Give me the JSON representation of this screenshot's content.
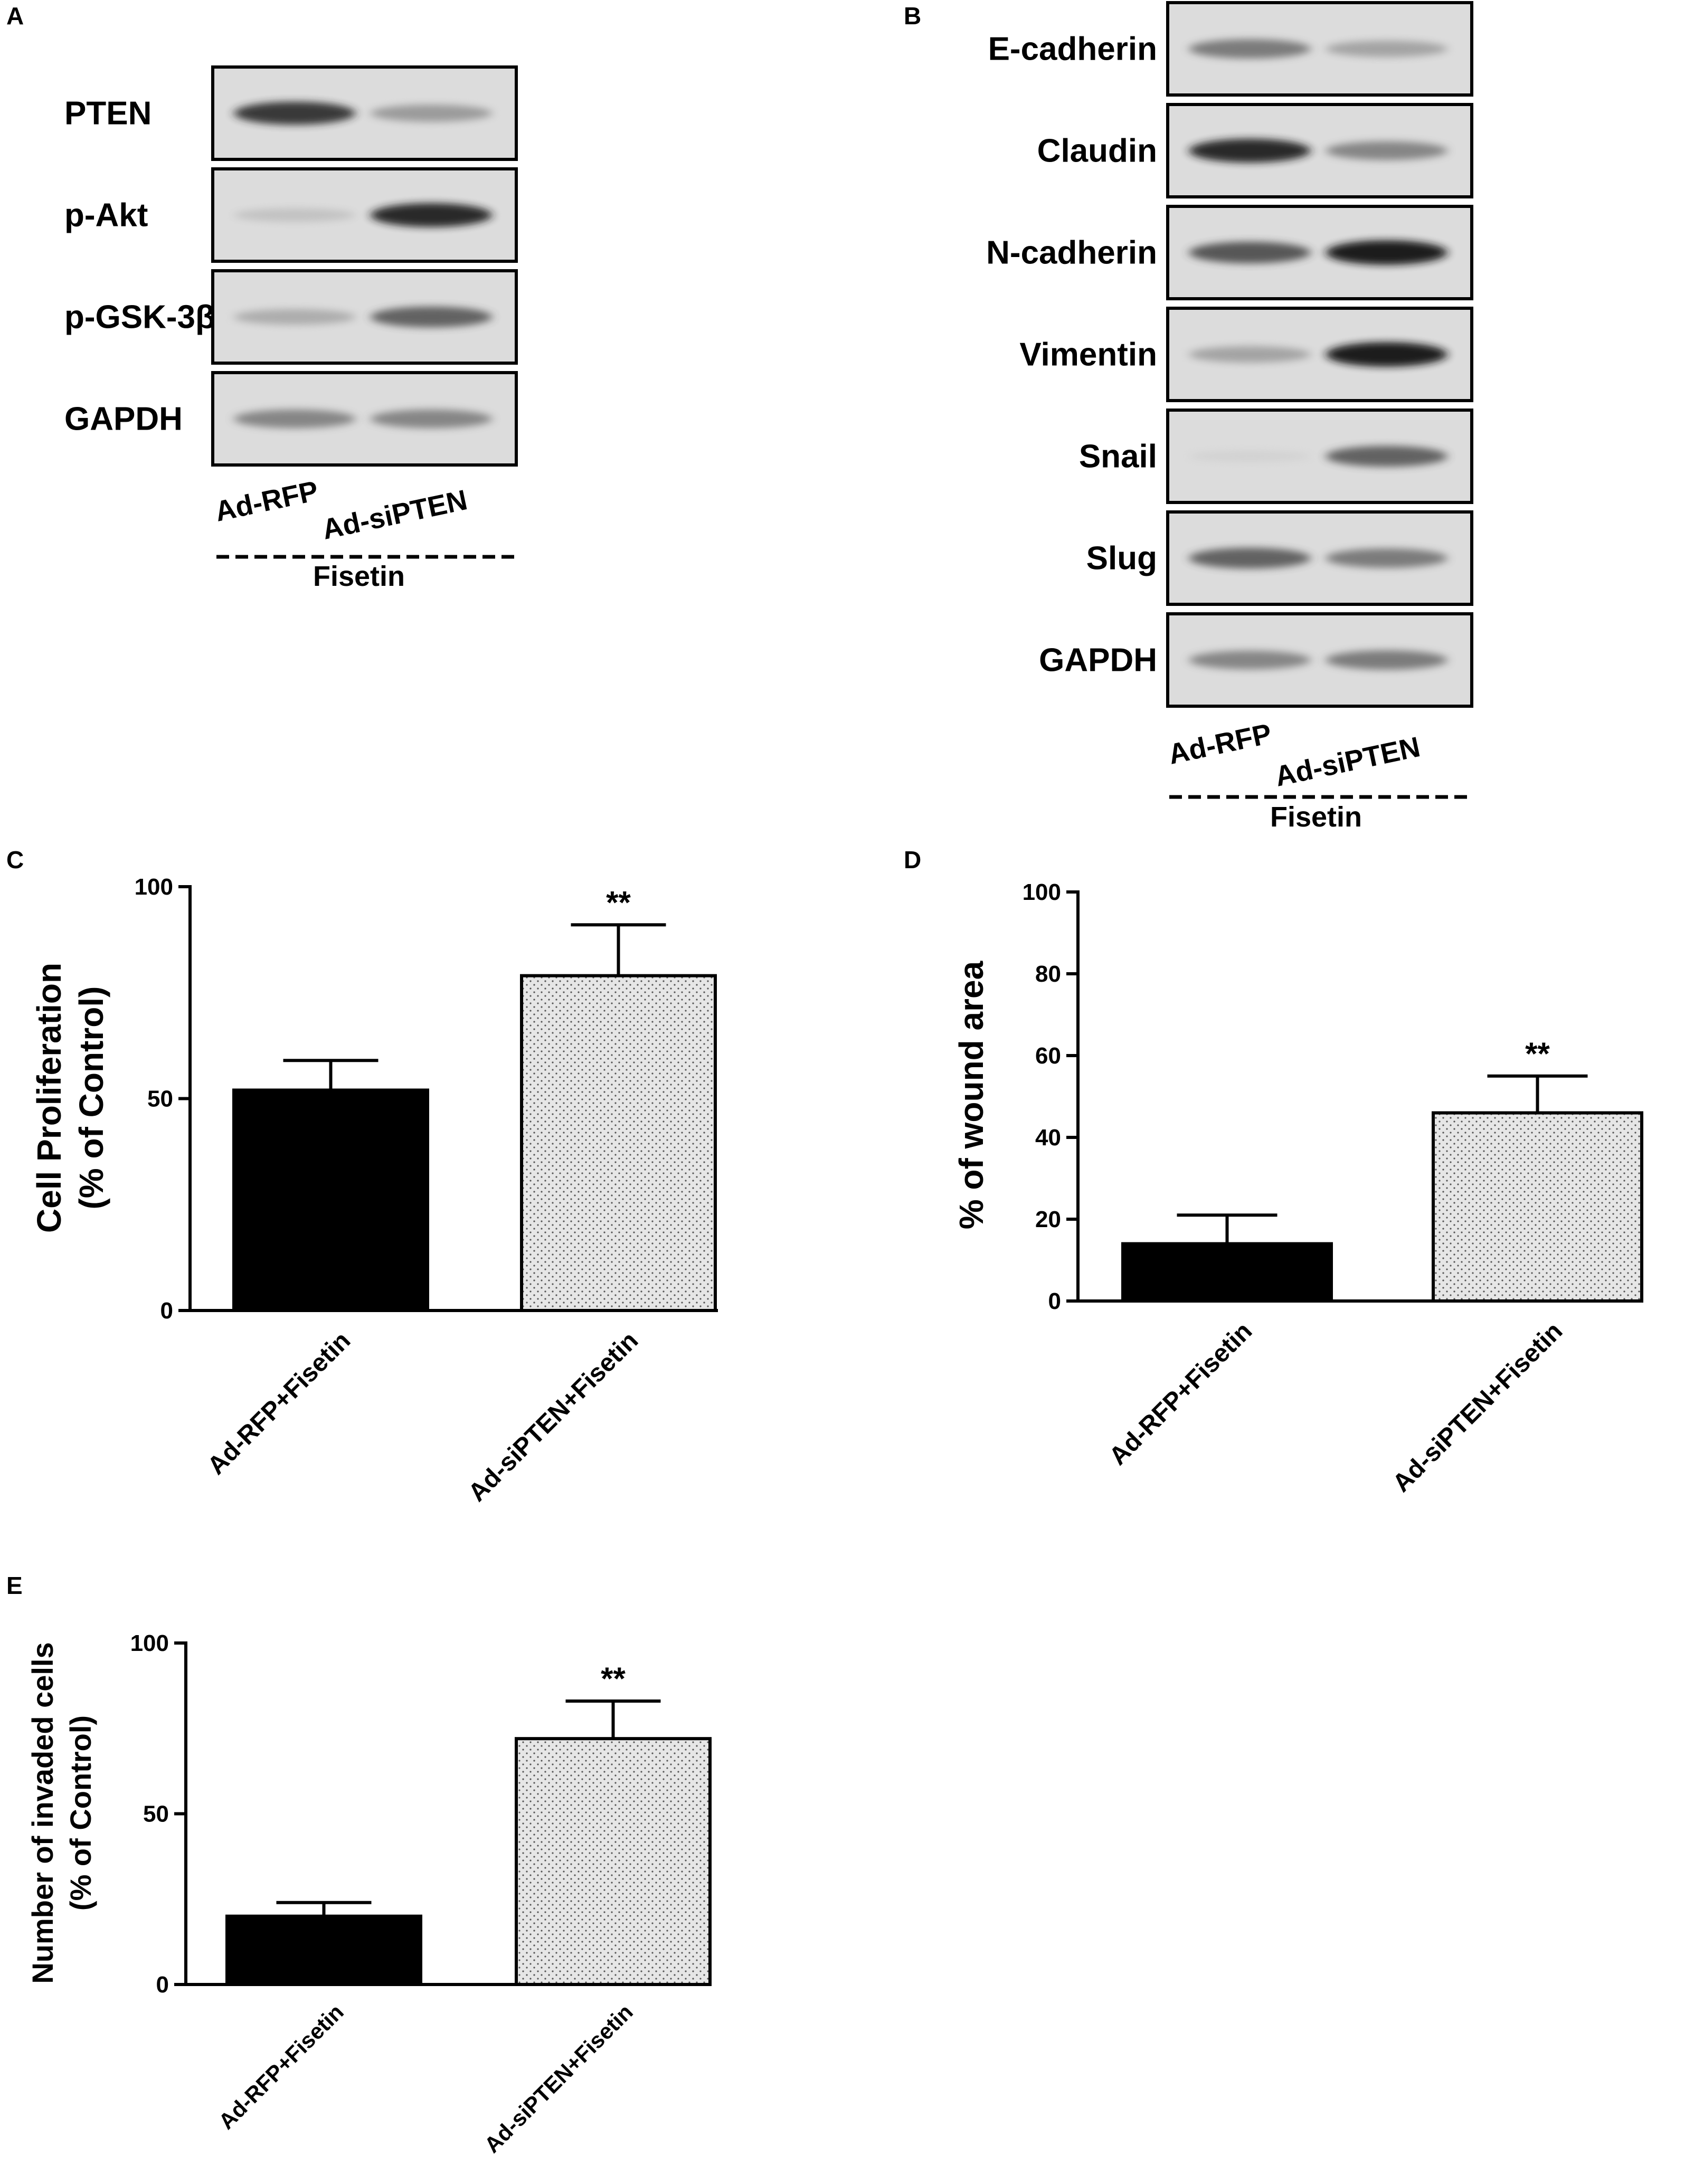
{
  "panel_A": {
    "letter": "A",
    "blots": [
      "PTEN",
      "p-Akt",
      "p-GSK-3β",
      "GAPDH"
    ],
    "lanes": [
      "Ad-RFP",
      "Ad-siPTEN"
    ],
    "treatment": "Fisetin",
    "band_intensity": [
      [
        0.85,
        0.45
      ],
      [
        0.2,
        0.9
      ],
      [
        0.35,
        0.7
      ],
      [
        0.55,
        0.55
      ]
    ]
  },
  "panel_B": {
    "letter": "B",
    "blots": [
      "E-cadherin",
      "Claudin",
      "N-cadherin",
      "Vimentin",
      "Snail",
      "Slug",
      "GAPDH"
    ],
    "lanes": [
      "Ad-RFP",
      "Ad-siPTEN"
    ],
    "treatment": "Fisetin",
    "band_intensity": [
      [
        0.6,
        0.4
      ],
      [
        0.9,
        0.55
      ],
      [
        0.75,
        0.95
      ],
      [
        0.4,
        0.95
      ],
      [
        0.05,
        0.7
      ],
      [
        0.7,
        0.6
      ],
      [
        0.55,
        0.6
      ]
    ]
  },
  "chart_data": [
    {
      "panel": "C",
      "type": "bar",
      "categories": [
        "Ad-RFP+Fisetin",
        "Ad-siPTEN+Fisetin"
      ],
      "values": [
        52,
        79
      ],
      "errors": [
        7,
        12
      ],
      "significance": [
        "",
        "**"
      ],
      "ylabel": [
        "Cell Proliferation",
        "(% of Control)"
      ],
      "xlabel": "",
      "ylim": [
        0,
        100
      ],
      "yticks": [
        0,
        50,
        100
      ],
      "bar_styles": [
        "solid",
        "dotted"
      ],
      "colors": {
        "solid": "#000000",
        "dotted_fill": "#e6e6e6"
      }
    },
    {
      "panel": "D",
      "type": "bar",
      "categories": [
        "Ad-RFP+Fisetin",
        "Ad-siPTEN+Fisetin"
      ],
      "values": [
        14,
        46
      ],
      "errors": [
        7,
        9
      ],
      "significance": [
        "",
        "**"
      ],
      "ylabel": [
        "% of wound area"
      ],
      "xlabel": "",
      "ylim": [
        0,
        100
      ],
      "yticks": [
        0,
        20,
        40,
        60,
        80,
        100
      ],
      "bar_styles": [
        "solid",
        "dotted"
      ],
      "colors": {
        "solid": "#000000",
        "dotted_fill": "#e6e6e6"
      }
    },
    {
      "panel": "E",
      "type": "bar",
      "categories": [
        "Ad-RFP+Fisetin",
        "Ad-siPTEN+Fisetin"
      ],
      "values": [
        20,
        72
      ],
      "errors": [
        4,
        11
      ],
      "significance": [
        "",
        "**"
      ],
      "ylabel": [
        "Number of invaded cells",
        "(% of Control)"
      ],
      "xlabel": "",
      "ylim": [
        0,
        100
      ],
      "yticks": [
        0,
        50,
        100
      ],
      "bar_styles": [
        "solid",
        "dotted"
      ],
      "colors": {
        "solid": "#000000",
        "dotted_fill": "#e6e6e6"
      }
    }
  ]
}
